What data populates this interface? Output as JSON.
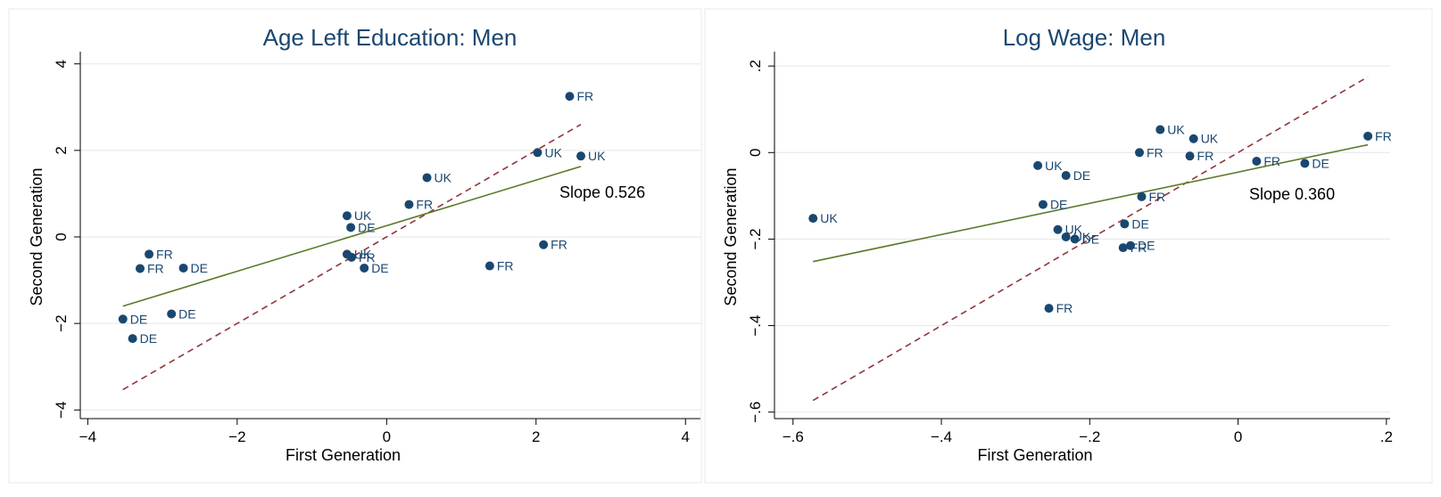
{
  "chart_data": [
    {
      "type": "scatter",
      "title": "Age Left Education: Men",
      "xlabel": "First Generation",
      "ylabel": "Second Generation",
      "xlim": [
        -4.1,
        4.2
      ],
      "ylim": [
        -4.2,
        4.2
      ],
      "xticks": [
        -4,
        -2,
        0,
        2,
        4
      ],
      "xtick_labels": [
        "−4",
        "−2",
        "0",
        "2",
        "4"
      ],
      "yticks": [
        -4,
        -2,
        0,
        2,
        4
      ],
      "ytick_labels": [
        "−4",
        "−2",
        "0",
        "2",
        "4"
      ],
      "grid": true,
      "annotation": "Slope 0.526",
      "points": [
        {
          "x": 2.45,
          "y": 3.25,
          "label": "FR"
        },
        {
          "x": 2.02,
          "y": 1.95,
          "label": "UK"
        },
        {
          "x": 2.6,
          "y": 1.87,
          "label": "UK"
        },
        {
          "x": 0.54,
          "y": 1.37,
          "label": "UK"
        },
        {
          "x": 0.3,
          "y": 0.75,
          "label": "FR"
        },
        {
          "x": -0.53,
          "y": 0.49,
          "label": "UK"
        },
        {
          "x": -0.48,
          "y": 0.22,
          "label": "DE"
        },
        {
          "x": -3.18,
          "y": -0.4,
          "label": "FR"
        },
        {
          "x": -3.3,
          "y": -0.73,
          "label": "FR"
        },
        {
          "x": -2.72,
          "y": -0.72,
          "label": "DE"
        },
        {
          "x": -0.53,
          "y": -0.4,
          "label": "UK"
        },
        {
          "x": -0.47,
          "y": -0.47,
          "label": "FR"
        },
        {
          "x": -0.3,
          "y": -0.72,
          "label": "DE"
        },
        {
          "x": 2.1,
          "y": -0.18,
          "label": "FR"
        },
        {
          "x": 1.38,
          "y": -0.67,
          "label": "FR"
        },
        {
          "x": -3.53,
          "y": -1.9,
          "label": "DE"
        },
        {
          "x": -2.88,
          "y": -1.78,
          "label": "DE"
        },
        {
          "x": -3.4,
          "y": -2.35,
          "label": "DE"
        }
      ],
      "fit_line": {
        "x": [
          -3.53,
          2.6
        ],
        "y": [
          -1.6,
          1.63
        ]
      },
      "reference_line": {
        "x": [
          -3.53,
          2.6
        ],
        "y": [
          -3.53,
          2.6
        ]
      }
    },
    {
      "type": "scatter",
      "title": "Log Wage: Men",
      "xlabel": "First Generation",
      "ylabel": "Second Generation",
      "xlim": [
        -0.625,
        0.205
      ],
      "ylim": [
        -0.615,
        0.225
      ],
      "xticks": [
        -0.6,
        -0.4,
        -0.2,
        0,
        0.2
      ],
      "xtick_labels": [
        "−.6",
        "−.4",
        "−.2",
        "0",
        ".2"
      ],
      "yticks": [
        -0.6,
        -0.4,
        -0.2,
        0,
        0.2
      ],
      "ytick_labels": [
        "−.6",
        "−.4",
        "−.2",
        "0",
        ".2"
      ],
      "grid": true,
      "annotation": "Slope 0.360",
      "points": [
        {
          "x": -0.573,
          "y": -0.152,
          "label": "UK"
        },
        {
          "x": -0.27,
          "y": -0.03,
          "label": "UK"
        },
        {
          "x": -0.232,
          "y": -0.053,
          "label": "DE"
        },
        {
          "x": -0.263,
          "y": -0.12,
          "label": "DE"
        },
        {
          "x": -0.243,
          "y": -0.178,
          "label": "UK"
        },
        {
          "x": -0.232,
          "y": -0.195,
          "label": "UK"
        },
        {
          "x": -0.22,
          "y": -0.2,
          "label": "DE"
        },
        {
          "x": -0.153,
          "y": -0.165,
          "label": "DE"
        },
        {
          "x": -0.155,
          "y": -0.22,
          "label": "FR"
        },
        {
          "x": -0.145,
          "y": -0.215,
          "label": "DE"
        },
        {
          "x": -0.13,
          "y": -0.102,
          "label": "FR"
        },
        {
          "x": -0.133,
          "y": 0.0,
          "label": "FR"
        },
        {
          "x": -0.105,
          "y": 0.053,
          "label": "UK"
        },
        {
          "x": -0.065,
          "y": -0.008,
          "label": "FR"
        },
        {
          "x": -0.06,
          "y": 0.032,
          "label": "UK"
        },
        {
          "x": 0.025,
          "y": -0.02,
          "label": "FR"
        },
        {
          "x": 0.09,
          "y": -0.025,
          "label": "DE"
        },
        {
          "x": 0.175,
          "y": 0.038,
          "label": "FR"
        },
        {
          "x": -0.255,
          "y": -0.36,
          "label": "FR"
        }
      ],
      "fit_line": {
        "x": [
          -0.573,
          0.175
        ],
        "y": [
          -0.252,
          0.018
        ]
      },
      "reference_line": {
        "x": [
          -0.573,
          0.175
        ],
        "y": [
          -0.573,
          0.175
        ]
      }
    }
  ],
  "colors": {
    "marker": "#1a476f",
    "fit_line": "#5b7a2a",
    "reference_line": "#90353b",
    "title": "#1a476f"
  }
}
